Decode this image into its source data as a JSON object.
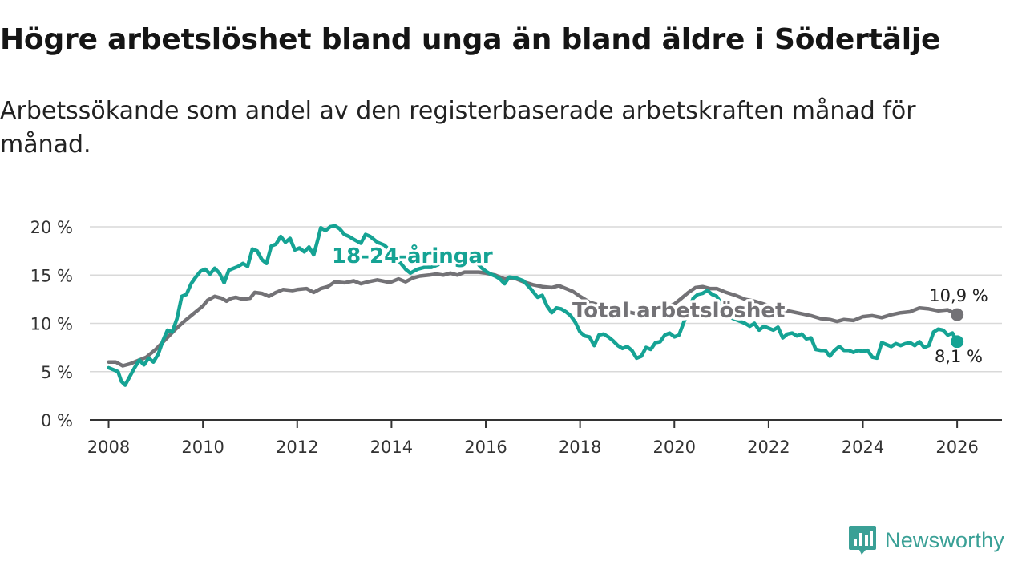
{
  "header": {
    "title": "Högre arbetslöshet bland unga än bland äldre i Södertälje",
    "subtitle": "Arbetssökande som andel av den registerbaserade arbetskraften månad för månad."
  },
  "brand": {
    "name": "Newsworthy",
    "color": "#3aa096"
  },
  "chart_data": {
    "type": "line",
    "title": "Högre arbetslöshet bland unga än bland äldre i Södertälje",
    "subtitle": "Arbetssökande som andel av den registerbaserade arbetskraften månad för månad.",
    "xlabel": "",
    "ylabel": "",
    "xlim": [
      2007.6,
      2026.95
    ],
    "ylim": [
      0,
      20
    ],
    "grid": true,
    "x_ticks": [
      {
        "value": 2008,
        "label": "2008"
      },
      {
        "value": 2010,
        "label": "2010"
      },
      {
        "value": 2012,
        "label": "2012"
      },
      {
        "value": 2014,
        "label": "2014"
      },
      {
        "value": 2016,
        "label": "2016"
      },
      {
        "value": 2018,
        "label": "2018"
      },
      {
        "value": 2020,
        "label": "2020"
      },
      {
        "value": 2022,
        "label": "2022"
      },
      {
        "value": 2024,
        "label": "2024"
      },
      {
        "value": 2026,
        "label": "2026"
      }
    ],
    "y_ticks": [
      {
        "value": 0,
        "label": "0 %"
      },
      {
        "value": 5,
        "label": "5 %"
      },
      {
        "value": 10,
        "label": "10 %"
      },
      {
        "value": 15,
        "label": "15 %"
      },
      {
        "value": 20,
        "label": "20 %"
      }
    ],
    "series": [
      {
        "name": "Total arbetslöshet",
        "label": "Total arbetslöshet",
        "color": "#737276",
        "end_label": "10,9 %",
        "end_value": 10.9,
        "points": [
          [
            2008.0,
            6.0
          ],
          [
            2008.15,
            6.0
          ],
          [
            2008.3,
            5.6
          ],
          [
            2008.45,
            5.8
          ],
          [
            2008.6,
            6.1
          ],
          [
            2008.8,
            6.5
          ],
          [
            2009.0,
            7.3
          ],
          [
            2009.2,
            8.3
          ],
          [
            2009.4,
            9.3
          ],
          [
            2009.6,
            10.2
          ],
          [
            2009.8,
            11.0
          ],
          [
            2010.0,
            11.8
          ],
          [
            2010.1,
            12.4
          ],
          [
            2010.25,
            12.8
          ],
          [
            2010.4,
            12.6
          ],
          [
            2010.5,
            12.3
          ],
          [
            2010.6,
            12.6
          ],
          [
            2010.7,
            12.7
          ],
          [
            2010.85,
            12.5
          ],
          [
            2011.0,
            12.6
          ],
          [
            2011.1,
            13.2
          ],
          [
            2011.25,
            13.1
          ],
          [
            2011.4,
            12.8
          ],
          [
            2011.55,
            13.2
          ],
          [
            2011.7,
            13.5
          ],
          [
            2011.9,
            13.4
          ],
          [
            2012.0,
            13.5
          ],
          [
            2012.2,
            13.6
          ],
          [
            2012.35,
            13.2
          ],
          [
            2012.5,
            13.6
          ],
          [
            2012.65,
            13.8
          ],
          [
            2012.8,
            14.3
          ],
          [
            2013.0,
            14.2
          ],
          [
            2013.2,
            14.4
          ],
          [
            2013.35,
            14.1
          ],
          [
            2013.5,
            14.3
          ],
          [
            2013.7,
            14.5
          ],
          [
            2013.9,
            14.3
          ],
          [
            2014.0,
            14.3
          ],
          [
            2014.15,
            14.6
          ],
          [
            2014.3,
            14.3
          ],
          [
            2014.45,
            14.7
          ],
          [
            2014.6,
            14.9
          ],
          [
            2014.8,
            15.0
          ],
          [
            2014.95,
            15.1
          ],
          [
            2015.1,
            15.0
          ],
          [
            2015.25,
            15.2
          ],
          [
            2015.4,
            15.0
          ],
          [
            2015.55,
            15.3
          ],
          [
            2015.7,
            15.3
          ],
          [
            2015.85,
            15.3
          ],
          [
            2016.0,
            15.2
          ],
          [
            2016.2,
            15.0
          ],
          [
            2016.4,
            14.6
          ],
          [
            2016.6,
            14.7
          ],
          [
            2016.8,
            14.3
          ],
          [
            2017.0,
            14.0
          ],
          [
            2017.2,
            13.8
          ],
          [
            2017.4,
            13.7
          ],
          [
            2017.55,
            13.9
          ],
          [
            2017.7,
            13.6
          ],
          [
            2017.85,
            13.3
          ],
          [
            2018.0,
            12.8
          ],
          [
            2018.2,
            12.2
          ],
          [
            2018.4,
            11.9
          ],
          [
            2018.6,
            11.6
          ],
          [
            2018.8,
            11.4
          ],
          [
            2019.0,
            11.2
          ],
          [
            2019.2,
            11.0
          ],
          [
            2019.4,
            11.2
          ],
          [
            2019.6,
            11.4
          ],
          [
            2019.8,
            11.7
          ],
          [
            2020.0,
            12.0
          ],
          [
            2020.15,
            12.6
          ],
          [
            2020.3,
            13.2
          ],
          [
            2020.45,
            13.7
          ],
          [
            2020.6,
            13.8
          ],
          [
            2020.75,
            13.6
          ],
          [
            2020.9,
            13.6
          ],
          [
            2021.1,
            13.2
          ],
          [
            2021.3,
            12.9
          ],
          [
            2021.5,
            12.5
          ],
          [
            2021.7,
            12.3
          ],
          [
            2021.9,
            12.0
          ],
          [
            2022.1,
            11.7
          ],
          [
            2022.3,
            11.4
          ],
          [
            2022.5,
            11.2
          ],
          [
            2022.7,
            11.0
          ],
          [
            2022.9,
            10.8
          ],
          [
            2023.1,
            10.5
          ],
          [
            2023.3,
            10.4
          ],
          [
            2023.45,
            10.2
          ],
          [
            2023.6,
            10.4
          ],
          [
            2023.8,
            10.3
          ],
          [
            2024.0,
            10.7
          ],
          [
            2024.2,
            10.8
          ],
          [
            2024.4,
            10.6
          ],
          [
            2024.6,
            10.9
          ],
          [
            2024.8,
            11.1
          ],
          [
            2025.0,
            11.2
          ],
          [
            2025.2,
            11.6
          ],
          [
            2025.4,
            11.5
          ],
          [
            2025.6,
            11.3
          ],
          [
            2025.8,
            11.4
          ],
          [
            2026.0,
            10.9
          ]
        ]
      },
      {
        "name": "18-24-åringar",
        "label": "18-24-åringar",
        "color": "#15a394",
        "end_label": "8,1 %",
        "end_value": 8.1,
        "points": [
          [
            2008.0,
            5.4
          ],
          [
            2008.1,
            5.2
          ],
          [
            2008.2,
            5.0
          ],
          [
            2008.27,
            4.0
          ],
          [
            2008.35,
            3.6
          ],
          [
            2008.45,
            4.5
          ],
          [
            2008.55,
            5.4
          ],
          [
            2008.65,
            6.2
          ],
          [
            2008.75,
            5.7
          ],
          [
            2008.85,
            6.4
          ],
          [
            2008.95,
            6.0
          ],
          [
            2009.05,
            6.8
          ],
          [
            2009.15,
            8.2
          ],
          [
            2009.25,
            9.3
          ],
          [
            2009.35,
            9.1
          ],
          [
            2009.45,
            10.5
          ],
          [
            2009.55,
            12.8
          ],
          [
            2009.65,
            13.0
          ],
          [
            2009.75,
            14.1
          ],
          [
            2009.85,
            14.8
          ],
          [
            2009.95,
            15.4
          ],
          [
            2010.05,
            15.6
          ],
          [
            2010.15,
            15.1
          ],
          [
            2010.25,
            15.7
          ],
          [
            2010.35,
            15.2
          ],
          [
            2010.45,
            14.2
          ],
          [
            2010.55,
            15.5
          ],
          [
            2010.65,
            15.7
          ],
          [
            2010.75,
            15.9
          ],
          [
            2010.85,
            16.2
          ],
          [
            2010.95,
            15.9
          ],
          [
            2011.05,
            17.7
          ],
          [
            2011.15,
            17.5
          ],
          [
            2011.25,
            16.6
          ],
          [
            2011.35,
            16.2
          ],
          [
            2011.45,
            18.0
          ],
          [
            2011.55,
            18.2
          ],
          [
            2011.65,
            19.0
          ],
          [
            2011.75,
            18.4
          ],
          [
            2011.85,
            18.8
          ],
          [
            2011.95,
            17.6
          ],
          [
            2012.05,
            17.8
          ],
          [
            2012.15,
            17.4
          ],
          [
            2012.25,
            17.9
          ],
          [
            2012.35,
            17.1
          ],
          [
            2012.45,
            18.9
          ],
          [
            2012.5,
            19.9
          ],
          [
            2012.6,
            19.6
          ],
          [
            2012.7,
            20.0
          ],
          [
            2012.8,
            20.1
          ],
          [
            2012.9,
            19.8
          ],
          [
            2013.0,
            19.2
          ],
          [
            2013.1,
            19.0
          ],
          [
            2013.2,
            18.7
          ],
          [
            2013.35,
            18.3
          ],
          [
            2013.45,
            19.2
          ],
          [
            2013.55,
            19.0
          ],
          [
            2013.7,
            18.4
          ],
          [
            2013.85,
            18.1
          ],
          [
            2013.95,
            17.6
          ],
          [
            2014.05,
            17.1
          ],
          [
            2014.15,
            16.5
          ],
          [
            2014.3,
            15.6
          ],
          [
            2014.4,
            15.2
          ],
          [
            2014.55,
            15.6
          ],
          [
            2014.7,
            15.8
          ],
          [
            2014.85,
            15.8
          ],
          [
            2015.0,
            16.1
          ],
          [
            2015.15,
            16.7
          ],
          [
            2015.3,
            17.0
          ],
          [
            2015.45,
            16.8
          ],
          [
            2015.6,
            16.9
          ],
          [
            2015.75,
            16.6
          ],
          [
            2015.9,
            15.8
          ],
          [
            2016.0,
            15.4
          ],
          [
            2016.1,
            15.1
          ],
          [
            2016.2,
            14.9
          ],
          [
            2016.3,
            14.6
          ],
          [
            2016.4,
            14.1
          ],
          [
            2016.5,
            14.8
          ],
          [
            2016.65,
            14.7
          ],
          [
            2016.8,
            14.4
          ],
          [
            2016.95,
            13.6
          ],
          [
            2017.1,
            12.7
          ],
          [
            2017.2,
            12.9
          ],
          [
            2017.3,
            11.8
          ],
          [
            2017.4,
            11.1
          ],
          [
            2017.5,
            11.6
          ],
          [
            2017.6,
            11.5
          ],
          [
            2017.7,
            11.2
          ],
          [
            2017.8,
            10.8
          ],
          [
            2017.9,
            10.1
          ],
          [
            2018.0,
            9.1
          ],
          [
            2018.1,
            8.7
          ],
          [
            2018.2,
            8.6
          ],
          [
            2018.3,
            7.7
          ],
          [
            2018.4,
            8.8
          ],
          [
            2018.5,
            8.9
          ],
          [
            2018.6,
            8.6
          ],
          [
            2018.7,
            8.2
          ],
          [
            2018.8,
            7.7
          ],
          [
            2018.9,
            7.4
          ],
          [
            2019.0,
            7.6
          ],
          [
            2019.1,
            7.2
          ],
          [
            2019.2,
            6.4
          ],
          [
            2019.3,
            6.6
          ],
          [
            2019.4,
            7.5
          ],
          [
            2019.5,
            7.3
          ],
          [
            2019.6,
            8.0
          ],
          [
            2019.7,
            8.1
          ],
          [
            2019.8,
            8.8
          ],
          [
            2019.9,
            9.0
          ],
          [
            2020.0,
            8.6
          ],
          [
            2020.1,
            8.8
          ],
          [
            2020.2,
            10.1
          ],
          [
            2020.3,
            11.3
          ],
          [
            2020.4,
            12.6
          ],
          [
            2020.5,
            13.0
          ],
          [
            2020.6,
            13.1
          ],
          [
            2020.7,
            13.4
          ],
          [
            2020.8,
            13.0
          ],
          [
            2020.9,
            12.8
          ],
          [
            2021.0,
            12.0
          ],
          [
            2021.1,
            11.3
          ],
          [
            2021.2,
            10.6
          ],
          [
            2021.3,
            10.4
          ],
          [
            2021.4,
            10.2
          ],
          [
            2021.5,
            10.0
          ],
          [
            2021.6,
            9.7
          ],
          [
            2021.7,
            10.0
          ],
          [
            2021.8,
            9.3
          ],
          [
            2021.9,
            9.7
          ],
          [
            2022.0,
            9.5
          ],
          [
            2022.1,
            9.3
          ],
          [
            2022.2,
            9.6
          ],
          [
            2022.3,
            8.5
          ],
          [
            2022.4,
            8.9
          ],
          [
            2022.5,
            9.0
          ],
          [
            2022.6,
            8.7
          ],
          [
            2022.7,
            8.9
          ],
          [
            2022.8,
            8.4
          ],
          [
            2022.9,
            8.5
          ],
          [
            2023.0,
            7.3
          ],
          [
            2023.1,
            7.2
          ],
          [
            2023.2,
            7.2
          ],
          [
            2023.3,
            6.6
          ],
          [
            2023.4,
            7.2
          ],
          [
            2023.5,
            7.6
          ],
          [
            2023.6,
            7.2
          ],
          [
            2023.7,
            7.2
          ],
          [
            2023.8,
            7.0
          ],
          [
            2023.9,
            7.2
          ],
          [
            2024.0,
            7.1
          ],
          [
            2024.1,
            7.2
          ],
          [
            2024.2,
            6.5
          ],
          [
            2024.3,
            6.4
          ],
          [
            2024.4,
            8.0
          ],
          [
            2024.5,
            7.8
          ],
          [
            2024.6,
            7.6
          ],
          [
            2024.7,
            7.9
          ],
          [
            2024.8,
            7.7
          ],
          [
            2024.9,
            7.9
          ],
          [
            2025.0,
            8.0
          ],
          [
            2025.1,
            7.7
          ],
          [
            2025.2,
            8.1
          ],
          [
            2025.3,
            7.5
          ],
          [
            2025.4,
            7.7
          ],
          [
            2025.5,
            9.1
          ],
          [
            2025.6,
            9.4
          ],
          [
            2025.7,
            9.3
          ],
          [
            2025.8,
            8.8
          ],
          [
            2025.9,
            9.0
          ],
          [
            2026.0,
            8.1
          ]
        ]
      }
    ]
  }
}
